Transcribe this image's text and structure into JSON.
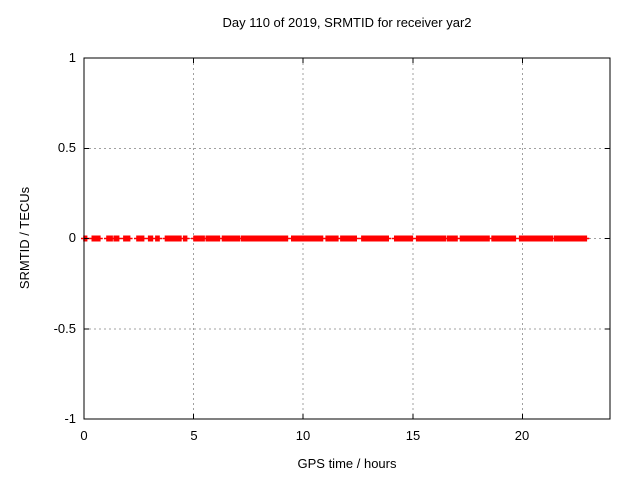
{
  "chart_data": {
    "type": "scatter",
    "title": "Day 110 of 2019, SRMTID for receiver yar2",
    "xlabel": "GPS time / hours",
    "ylabel": "SRMTID / TECUs",
    "xlim": [
      0,
      24
    ],
    "ylim": [
      -1,
      1
    ],
    "xticks": [
      0,
      5,
      10,
      15,
      20
    ],
    "yticks": [
      1,
      0.5,
      0,
      -0.5,
      -1
    ],
    "xtick_labels": [
      "0",
      "5",
      "10",
      "15",
      "20"
    ],
    "ytick_labels": [
      "1",
      "0.5",
      "0",
      "-0.5",
      "-1"
    ],
    "grid": true,
    "legend": "none",
    "marker": "plus",
    "marker_color": "#ff0000",
    "grid_color": "#a0a0a0",
    "border_color": "#000000",
    "y_value": 0,
    "point_step_hours": 0.05,
    "x_segments_hours": [
      [
        0.0,
        0.12
      ],
      [
        0.38,
        0.72
      ],
      [
        1.05,
        1.28
      ],
      [
        1.38,
        1.58
      ],
      [
        1.82,
        2.08
      ],
      [
        2.42,
        2.72
      ],
      [
        2.95,
        3.12
      ],
      [
        3.28,
        3.42
      ],
      [
        3.72,
        4.42
      ],
      [
        4.55,
        4.68
      ],
      [
        5.02,
        5.48
      ],
      [
        5.58,
        6.18
      ],
      [
        6.32,
        7.08
      ],
      [
        7.18,
        8.02
      ],
      [
        8.08,
        9.28
      ],
      [
        9.48,
        10.88
      ],
      [
        11.05,
        11.58
      ],
      [
        11.72,
        12.42
      ],
      [
        12.68,
        13.88
      ],
      [
        14.18,
        14.98
      ],
      [
        15.18,
        16.48
      ],
      [
        16.58,
        17.02
      ],
      [
        17.18,
        18.48
      ],
      [
        18.62,
        19.68
      ],
      [
        19.88,
        21.38
      ],
      [
        21.48,
        22.92
      ]
    ]
  }
}
